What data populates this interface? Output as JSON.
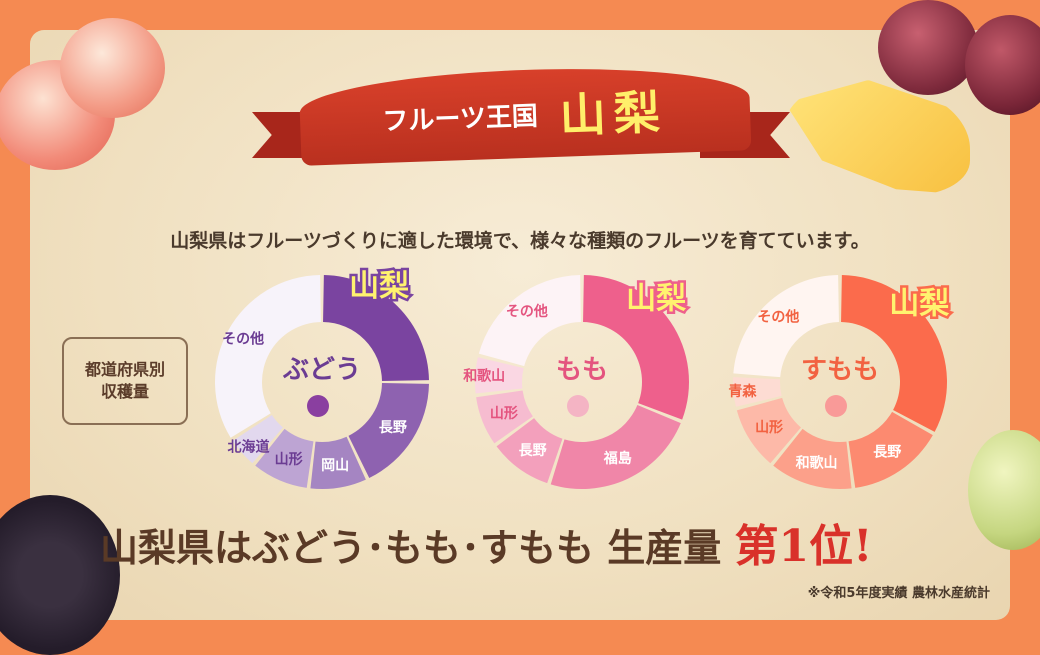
{
  "banner": {
    "small": "フルーツ王国",
    "big": "山梨"
  },
  "intro": "山梨県はフルーツづくりに適した環境で、様々な種類のフルーツを育てています。",
  "label_box": {
    "line1": "都道府県別",
    "line2": "収穫量"
  },
  "headline": {
    "main": "山梨県はぶどう･もも･すもも 生産量",
    "rank": "第1位!"
  },
  "note": "※令和5年度実績 農林水産統計",
  "chart_data": [
    {
      "type": "pie",
      "title": "ぶどう",
      "categories": [
        "山梨",
        "長野",
        "岡山",
        "山形",
        "北海道",
        "その他"
      ],
      "values": [
        25,
        18,
        9,
        9,
        5,
        34
      ],
      "colors": [
        "#7a44a0",
        "#8e62b0",
        "#a585c2",
        "#bda4d3",
        "#e2d8ee",
        "#f7f3fa"
      ],
      "text_color": "#6b3c93"
    },
    {
      "type": "pie",
      "title": "もも",
      "categories": [
        "山梨",
        "福島",
        "長野",
        "山形",
        "和歌山",
        "その他"
      ],
      "values": [
        31,
        24,
        10,
        8,
        6,
        21
      ],
      "colors": [
        "#ee608c",
        "#f086a8",
        "#f3a0bc",
        "#f6bcd0",
        "#fad7e3",
        "#fdf3f6"
      ],
      "text_color": "#e4547f"
    },
    {
      "type": "pie",
      "title": "すもも",
      "categories": [
        "山梨",
        "長野",
        "和歌山",
        "山形",
        "青森",
        "その他"
      ],
      "values": [
        33,
        15,
        13,
        10,
        5,
        24
      ],
      "colors": [
        "#fb6b4c",
        "#fc8a70",
        "#fca08a",
        "#fdb9a8",
        "#fddcd3",
        "#fff5f1"
      ],
      "text_color": "#f26241"
    }
  ]
}
